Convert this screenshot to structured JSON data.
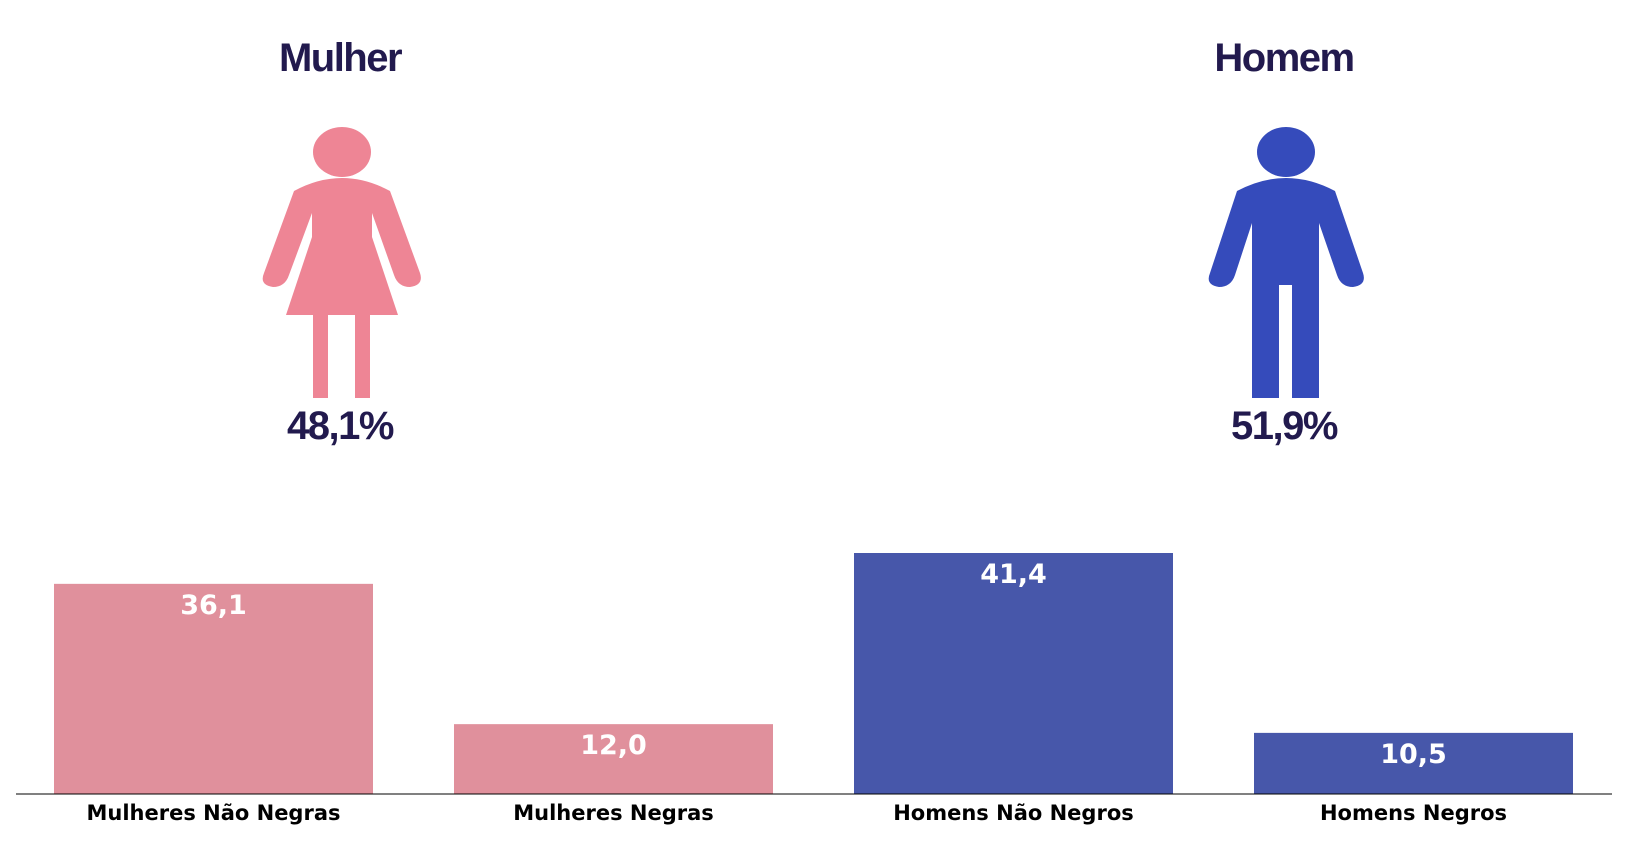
{
  "panels": {
    "mulher": {
      "title": "Mulher",
      "percent": "48,1%",
      "icon": "woman-icon",
      "color": "#ee8595"
    },
    "homem": {
      "title": "Homem",
      "percent": "51,9%",
      "icon": "man-icon",
      "color": "#354bbb"
    }
  },
  "chart_data": {
    "type": "bar",
    "categories": [
      "Mulheres Não Negras",
      "Mulheres Negras",
      "Homens Não Negros",
      "Homens Negros"
    ],
    "values": [
      36.1,
      12.0,
      41.4,
      10.5
    ],
    "value_labels": [
      "36,1",
      "12,0",
      "41,4",
      "10,5"
    ],
    "bar_colors": [
      "#e0909c",
      "#e0909c",
      "#4757aa",
      "#4757aa"
    ],
    "label_color": "#ffffff",
    "title": "",
    "xlabel": "",
    "ylabel": "",
    "ylim": [
      0,
      41.4
    ],
    "grid": false,
    "legend": "none"
  }
}
